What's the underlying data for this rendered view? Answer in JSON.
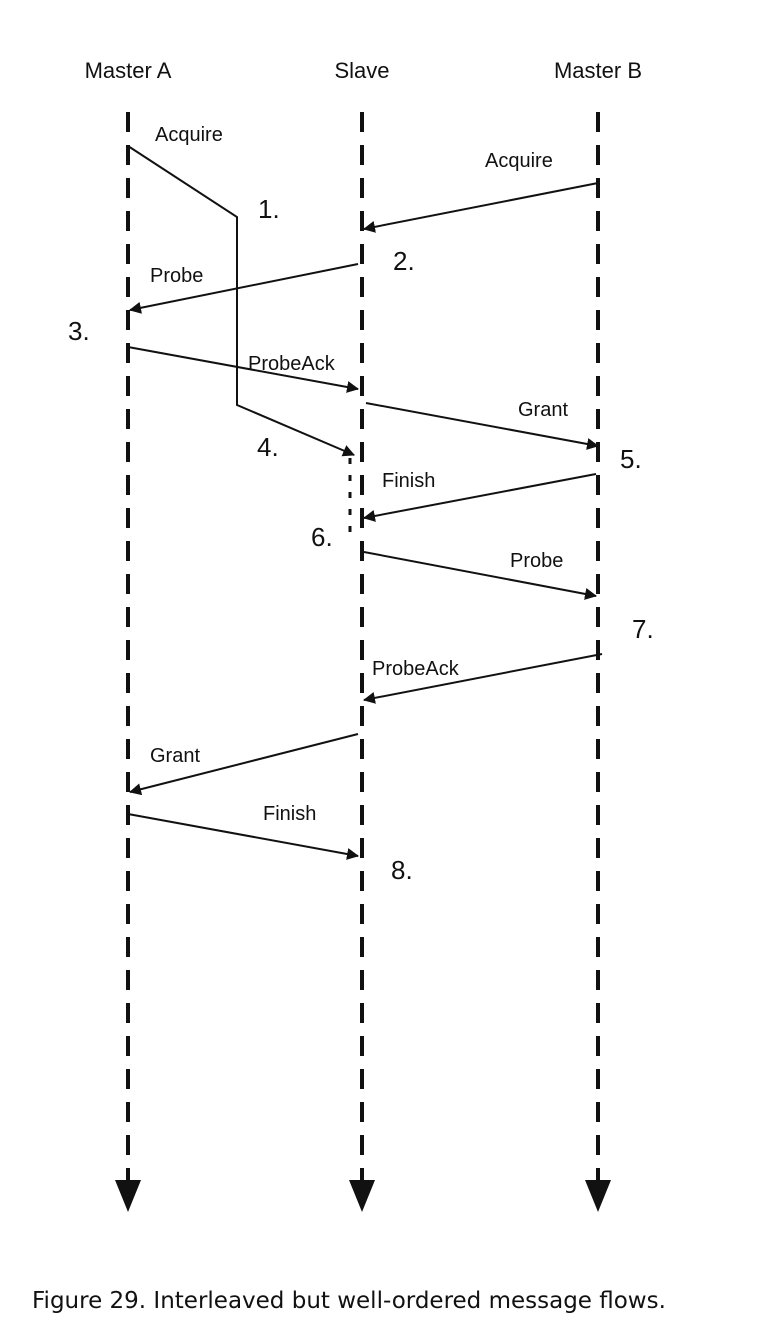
{
  "lanes": {
    "master_a": "Master A",
    "slave": "Slave",
    "master_b": "Master B"
  },
  "messages": {
    "acquire_a": "Acquire",
    "acquire_b": "Acquire",
    "probe_1": "Probe",
    "probeack_1": "ProbeAck",
    "grant_1": "Grant",
    "finish_1": "Finish",
    "probe_2": "Probe",
    "probeack_2": "ProbeAck",
    "grant_2": "Grant",
    "finish_2": "Finish"
  },
  "steps": {
    "s1": "1.",
    "s2": "2.",
    "s3": "3.",
    "s4": "4.",
    "s5": "5.",
    "s6": "6.",
    "s7": "7.",
    "s8": "8."
  },
  "caption": "Figure 29. Interleaved but well-ordered message flows."
}
